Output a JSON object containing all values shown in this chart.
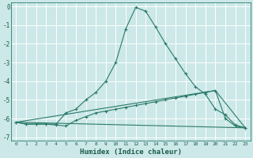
{
  "xlabel": "Humidex (Indice chaleur)",
  "background_color": "#cce8e8",
  "grid_color": "#ffffff",
  "line_color": "#2a7a6a",
  "xlim": [
    -0.5,
    23.5
  ],
  "ylim": [
    -7.2,
    0.2
  ],
  "xticks": [
    0,
    1,
    2,
    3,
    4,
    5,
    6,
    7,
    8,
    9,
    10,
    11,
    12,
    13,
    14,
    15,
    16,
    17,
    18,
    19,
    20,
    21,
    22,
    23
  ],
  "yticks": [
    0,
    -1,
    -2,
    -3,
    -4,
    -5,
    -6,
    -7
  ],
  "series1_x": [
    0,
    1,
    2,
    3,
    4,
    5,
    6,
    7,
    8,
    9,
    10,
    11,
    12,
    13,
    14,
    15,
    16,
    17,
    18,
    19,
    20,
    21,
    22,
    23
  ],
  "series1_y": [
    -6.2,
    -6.3,
    -6.3,
    -6.3,
    -6.3,
    -5.7,
    -5.5,
    -5.0,
    -4.6,
    -4.0,
    -3.0,
    -1.2,
    -0.05,
    -0.25,
    -1.1,
    -2.0,
    -2.8,
    -3.6,
    -4.3,
    -4.7,
    -5.5,
    -5.8,
    -6.35,
    -6.5
  ],
  "series2_x": [
    0,
    1,
    2,
    3,
    4,
    5,
    6,
    7,
    8,
    9,
    10,
    11,
    12,
    13,
    14,
    15,
    16,
    17,
    18,
    19,
    20,
    21,
    22,
    23
  ],
  "series2_y": [
    -6.2,
    -6.3,
    -6.3,
    -6.3,
    -6.35,
    -6.4,
    -6.1,
    -5.9,
    -5.7,
    -5.6,
    -5.5,
    -5.4,
    -5.3,
    -5.2,
    -5.1,
    -5.0,
    -4.9,
    -4.8,
    -4.7,
    -4.6,
    -4.5,
    -6.0,
    -6.4,
    -6.5
  ],
  "series3_x": [
    0,
    23
  ],
  "series3_y": [
    -6.2,
    -6.5
  ],
  "series4_x": [
    0,
    20,
    23
  ],
  "series4_y": [
    -6.2,
    -4.5,
    -6.5
  ]
}
